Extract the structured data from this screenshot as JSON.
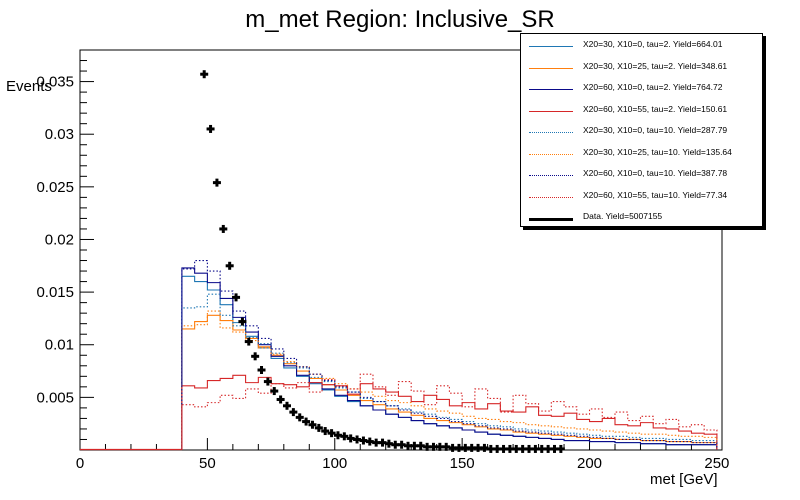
{
  "chart_data": {
    "type": "histogram",
    "title": "m_met Region: Inclusive_SR",
    "xlabel": "met [GeV]",
    "ylabel": "Events",
    "xlim": [
      0,
      252
    ],
    "ylim": [
      0,
      0.038
    ],
    "xticks": [
      0,
      50,
      100,
      150,
      200,
      250
    ],
    "xtick_labels": [
      "0",
      "50",
      "100",
      "150",
      "200",
      "250"
    ],
    "yticks": [
      0.005,
      0.01,
      0.015,
      0.02,
      0.025,
      0.03,
      0.035
    ],
    "ytick_labels": [
      "0.005",
      "0.01",
      "0.015",
      "0.02",
      "0.025",
      "0.03",
      "0.035"
    ],
    "bin_edges": [
      40,
      45,
      50,
      55,
      60,
      65,
      70,
      75,
      80,
      85,
      90,
      95,
      100,
      105,
      110,
      115,
      120,
      125,
      130,
      135,
      140,
      145,
      150,
      155,
      160,
      165,
      170,
      175,
      180,
      185,
      190,
      195,
      200,
      205,
      210,
      215,
      220,
      225,
      230,
      235,
      240,
      245,
      250
    ],
    "series": [
      {
        "name": "X20=30, X10=0, tau=2. Yield=664.01",
        "color": "#1f77b4",
        "style": "solid",
        "values": [
          0.0165,
          0.016,
          0.0152,
          0.0138,
          0.0121,
          0.0108,
          0.0097,
          0.0087,
          0.0078,
          0.007,
          0.0063,
          0.0057,
          0.0051,
          0.0046,
          0.0042,
          0.0038,
          0.0034,
          0.0031,
          0.0028,
          0.0025,
          0.0023,
          0.0021,
          0.0019,
          0.0017,
          0.0015,
          0.0014,
          0.0013,
          0.0012,
          0.0011,
          0.001,
          0.0009,
          0.0009,
          0.0008,
          0.0008,
          0.0007,
          0.0007,
          0.0006,
          0.0006,
          0.0005,
          0.0005,
          0.0005,
          0.0005
        ]
      },
      {
        "name": "X20=30, X10=25, tau=2. Yield=348.61",
        "color": "#ff7f0e",
        "style": "solid",
        "values": [
          0.0115,
          0.0122,
          0.0128,
          0.0123,
          0.0114,
          0.0106,
          0.0098,
          0.009,
          0.0082,
          0.0075,
          0.0068,
          0.0062,
          0.0057,
          0.0052,
          0.0047,
          0.0043,
          0.0039,
          0.0036,
          0.0033,
          0.003,
          0.0028,
          0.0026,
          0.0024,
          0.0022,
          0.002,
          0.0019,
          0.0017,
          0.0016,
          0.0015,
          0.0014,
          0.0013,
          0.0012,
          0.0011,
          0.0011,
          0.001,
          0.001,
          0.0009,
          0.0009,
          0.0008,
          0.0008,
          0.0007,
          0.0007
        ]
      },
      {
        "name": "X20=60, X10=0, tau=2. Yield=764.72",
        "color": "#0a0a8a",
        "style": "solid",
        "values": [
          0.0173,
          0.0168,
          0.0159,
          0.0144,
          0.0126,
          0.0112,
          0.01,
          0.0089,
          0.008,
          0.0071,
          0.0064,
          0.0058,
          0.0052,
          0.0047,
          0.0042,
          0.0038,
          0.0034,
          0.0031,
          0.0028,
          0.0025,
          0.0023,
          0.0021,
          0.0019,
          0.0017,
          0.0015,
          0.0014,
          0.0013,
          0.0012,
          0.0011,
          0.001,
          0.0009,
          0.0009,
          0.0008,
          0.0008,
          0.0007,
          0.0007,
          0.0006,
          0.0006,
          0.0005,
          0.0005,
          0.0005,
          0.0005
        ]
      },
      {
        "name": "X20=60, X10=55, tau=2. Yield=150.61",
        "color": "#d62728",
        "style": "solid",
        "values": [
          0.0061,
          0.0059,
          0.0066,
          0.0068,
          0.0071,
          0.0064,
          0.0069,
          0.0063,
          0.0062,
          0.006,
          0.0064,
          0.0062,
          0.0061,
          0.0053,
          0.0063,
          0.0058,
          0.0055,
          0.0051,
          0.0046,
          0.0052,
          0.0048,
          0.0042,
          0.0045,
          0.0039,
          0.0044,
          0.0037,
          0.0036,
          0.0041,
          0.0033,
          0.0032,
          0.0035,
          0.0029,
          0.0027,
          0.003,
          0.0024,
          0.0023,
          0.0026,
          0.0021,
          0.002,
          0.0018,
          0.0016,
          0.0015
        ]
      },
      {
        "name": "X20=30, X10=0, tau=10. Yield=287.79",
        "color": "#1f77b4",
        "style": "dotted",
        "values": [
          0.0135,
          0.0136,
          0.0148,
          0.0128,
          0.0118,
          0.0107,
          0.0101,
          0.0092,
          0.0083,
          0.0078,
          0.0069,
          0.0065,
          0.0059,
          0.0055,
          0.0049,
          0.0046,
          0.0042,
          0.0039,
          0.0036,
          0.0034,
          0.0031,
          0.0029,
          0.0027,
          0.0025,
          0.0023,
          0.0022,
          0.002,
          0.0019,
          0.0018,
          0.0017,
          0.0016,
          0.0015,
          0.0014,
          0.0013,
          0.0013,
          0.0012,
          0.0011,
          0.0011,
          0.001,
          0.001,
          0.0009,
          0.0009
        ]
      },
      {
        "name": "X20=30, X10=25, tau=10. Yield=135.64",
        "color": "#ff7f0e",
        "style": "dotted",
        "values": [
          0.0118,
          0.0119,
          0.0132,
          0.0116,
          0.0112,
          0.0104,
          0.0097,
          0.0091,
          0.0084,
          0.0079,
          0.0072,
          0.0068,
          0.0063,
          0.0058,
          0.0055,
          0.0051,
          0.0047,
          0.0045,
          0.0042,
          0.0039,
          0.0037,
          0.0035,
          0.0032,
          0.003,
          0.0029,
          0.0027,
          0.0026,
          0.0024,
          0.0023,
          0.0022,
          0.0021,
          0.002,
          0.0019,
          0.0018,
          0.0017,
          0.0016,
          0.0015,
          0.0015,
          0.0014,
          0.0013,
          0.0013,
          0.0012
        ]
      },
      {
        "name": "X20=60, X10=0, tau=10. Yield=387.78",
        "color": "#0a0a8a",
        "style": "dotted",
        "values": [
          0.0172,
          0.018,
          0.017,
          0.0151,
          0.0132,
          0.0118,
          0.0106,
          0.0096,
          0.0087,
          0.0079,
          0.0072,
          0.0066,
          0.006,
          0.0055,
          0.005,
          0.0046,
          0.0042,
          0.0038,
          0.0035,
          0.0032,
          0.003,
          0.0027,
          0.0025,
          0.0023,
          0.0021,
          0.002,
          0.0018,
          0.0017,
          0.0016,
          0.0015,
          0.0014,
          0.0013,
          0.0012,
          0.0011,
          0.001,
          0.001,
          0.0009,
          0.0009,
          0.0008,
          0.0008,
          0.0007,
          0.0007
        ]
      },
      {
        "name": "X20=60, X10=55, tau=10. Yield=77.34",
        "color": "#d62728",
        "style": "dotted",
        "values": [
          0.0043,
          0.0041,
          0.0045,
          0.0052,
          0.0049,
          0.0058,
          0.0054,
          0.0063,
          0.0059,
          0.0064,
          0.0055,
          0.0067,
          0.0061,
          0.0058,
          0.0072,
          0.006,
          0.0052,
          0.0065,
          0.0056,
          0.0043,
          0.0061,
          0.0054,
          0.0041,
          0.0058,
          0.0049,
          0.0036,
          0.0052,
          0.0044,
          0.0037,
          0.0046,
          0.0041,
          0.0034,
          0.0039,
          0.0031,
          0.0036,
          0.0028,
          0.0032,
          0.0025,
          0.0029,
          0.0022,
          0.0024,
          0.0019
        ]
      }
    ],
    "data": {
      "name": "Data. Yield=5007155",
      "color": "#000000",
      "x": [
        48.75,
        51.25,
        53.75,
        56.25,
        58.75,
        61.25,
        63.75,
        66.25,
        68.75,
        71.25,
        73.75,
        76.25,
        78.75,
        81.25,
        83.75,
        86.25,
        88.75,
        91.25,
        93.75,
        96.25,
        98.75,
        101.25,
        103.75,
        106.25,
        108.75,
        111.25,
        113.75,
        116.25,
        118.75,
        121.25,
        123.75,
        126.25,
        128.75,
        131.25,
        133.75,
        136.25,
        138.75,
        141.25,
        143.75,
        146.25,
        148.75,
        151.25,
        153.75,
        156.25,
        158.75,
        161.25,
        163.75,
        166.25,
        168.75,
        171.25,
        173.75,
        176.25,
        178.75,
        181.25,
        183.75,
        186.25,
        188.75
      ],
      "y": [
        0.0357,
        0.0305,
        0.0254,
        0.021,
        0.0175,
        0.0145,
        0.0122,
        0.0103,
        0.0089,
        0.0076,
        0.0065,
        0.0056,
        0.0048,
        0.0042,
        0.0036,
        0.0031,
        0.0027,
        0.0024,
        0.0021,
        0.0018,
        0.0016,
        0.0014,
        0.0013,
        0.0011,
        0.001,
        0.0009,
        0.0008,
        0.0007,
        0.0007,
        0.0006,
        0.0005,
        0.0005,
        0.0004,
        0.0004,
        0.0004,
        0.0003,
        0.0003,
        0.0003,
        0.0003,
        0.0002,
        0.0002,
        0.0002,
        0.0002,
        0.0002,
        0.0002,
        0.0001,
        0.0001,
        0.0001,
        0.0001,
        0.0001,
        0.0001,
        0.0001,
        0.0001,
        0.0001,
        0.0001,
        0.0001,
        0.0001
      ]
    }
  }
}
